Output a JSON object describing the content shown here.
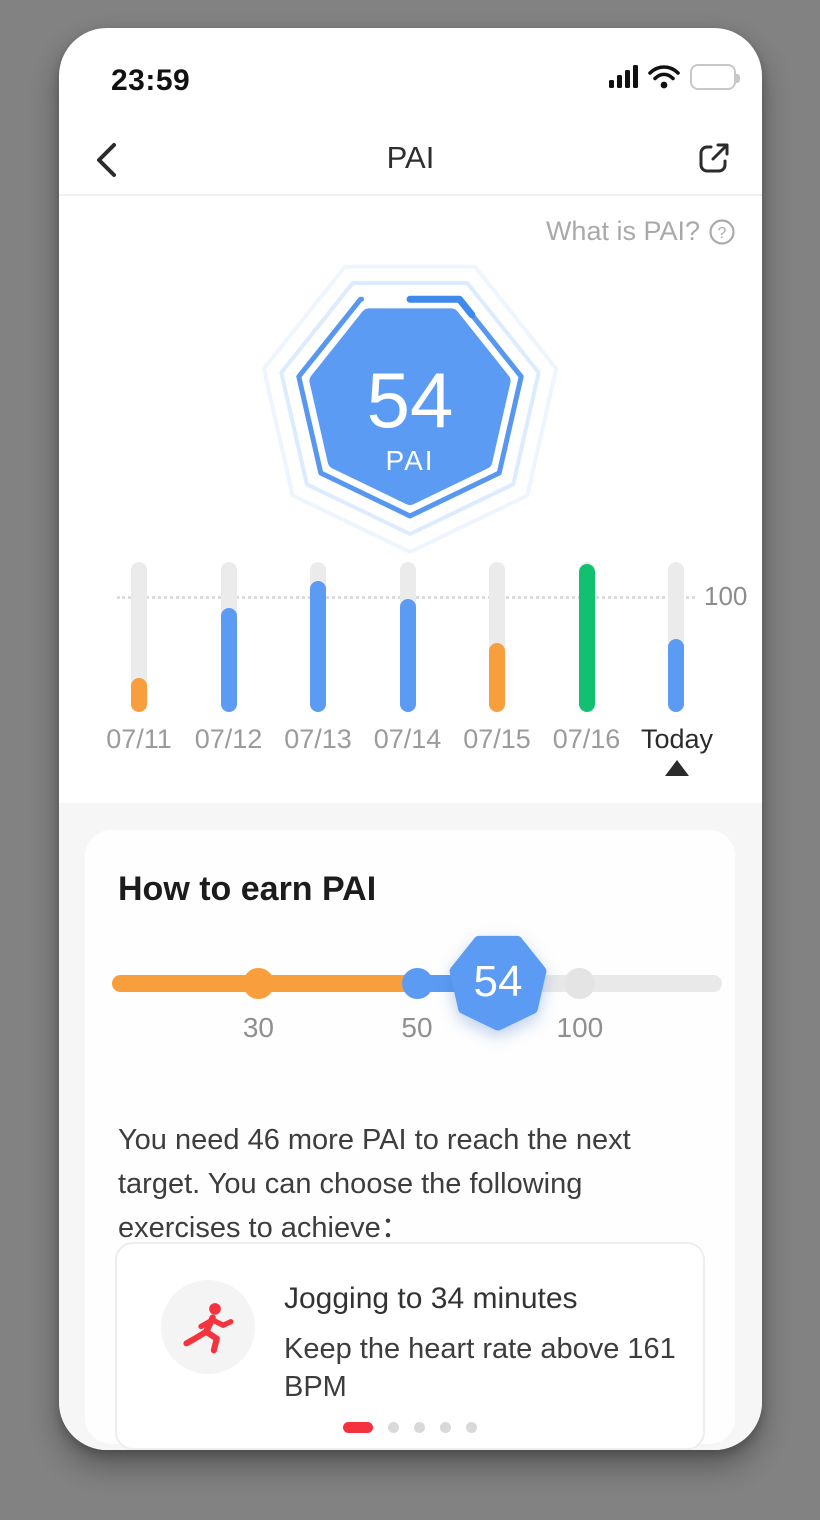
{
  "palette": {
    "blue": "#5b9bf3",
    "orange": "#f99e3c",
    "green": "#12c170",
    "red": "#f5313d",
    "track_gray": "#ebebeb"
  },
  "status_bar": {
    "time": "23:59",
    "icons": [
      "signal-bars-icon",
      "wifi-icon",
      "battery-icon"
    ]
  },
  "header": {
    "title": "PAI",
    "back_icon": "chevron-left-icon",
    "share_icon": "share-icon"
  },
  "info_link": {
    "label": "What is PAI?",
    "icon": "question-circle-icon"
  },
  "score_badge": {
    "value": "54",
    "unit": "PAI",
    "color": "#5b9bf3"
  },
  "chart_data": {
    "type": "bar",
    "title": "PAI last 7 days",
    "categories": [
      "07/11",
      "07/12",
      "07/13",
      "07/14",
      "07/15",
      "07/16",
      "Today"
    ],
    "values": [
      25,
      77,
      97,
      84,
      51,
      110,
      54
    ],
    "colors": [
      "orange",
      "blue",
      "blue",
      "blue",
      "orange",
      "green",
      "blue"
    ],
    "target_line": 100,
    "target_label": "100",
    "ylim": [
      0,
      110
    ],
    "selected_index": 6,
    "grid": "dotted-target-line-only",
    "legend": "none"
  },
  "earn_card": {
    "title": "How to earn PAI",
    "slider": {
      "current": "54",
      "ticks": [
        {
          "label": "30",
          "color": "orange"
        },
        {
          "label": "50",
          "color": "blue"
        },
        {
          "label": "100",
          "color": "gray"
        }
      ]
    },
    "description": "You need 46 more PAI to reach the next target. You can choose the following exercises to achieve：",
    "exercise": {
      "icon": "runner-icon",
      "title": "Jogging to 34 minutes",
      "subtitle": "Keep the heart rate above 161 BPM"
    },
    "pagination": {
      "count": 5,
      "active": 0
    }
  }
}
